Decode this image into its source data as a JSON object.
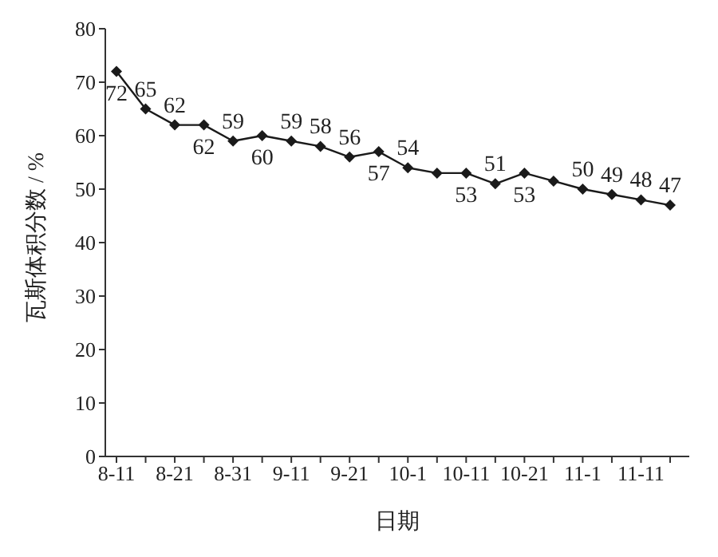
{
  "chart_data": {
    "type": "line",
    "xlabel": "日期",
    "ylabel": "瓦斯体积分数 / %",
    "categories": [
      "8-11",
      null,
      "8-21",
      null,
      "8-31",
      null,
      "9-11",
      null,
      "9-21",
      null,
      "10-1",
      null,
      "10-11",
      null,
      "10-21",
      null,
      "11-1",
      null,
      "11-11",
      null
    ],
    "series": [
      {
        "color": "#1a1a1a",
        "values": [
          72,
          65,
          62,
          62,
          59,
          60,
          59,
          58,
          56,
          57,
          54,
          53,
          53,
          51,
          53,
          51.5,
          50,
          49,
          48,
          47
        ],
        "value_labels": [
          "72",
          "65",
          "62",
          "62",
          "59",
          "60",
          "59",
          "58",
          "56",
          "57",
          "54",
          null,
          "53",
          "51",
          "53",
          null,
          "50",
          "49",
          "48",
          "47"
        ]
      }
    ],
    "ylim": [
      0,
      80
    ],
    "yticks": [
      0,
      10,
      20,
      30,
      40,
      50,
      60,
      70,
      80
    ],
    "grid": false,
    "legend": false,
    "marker": "diamond",
    "line_style": "solid"
  }
}
